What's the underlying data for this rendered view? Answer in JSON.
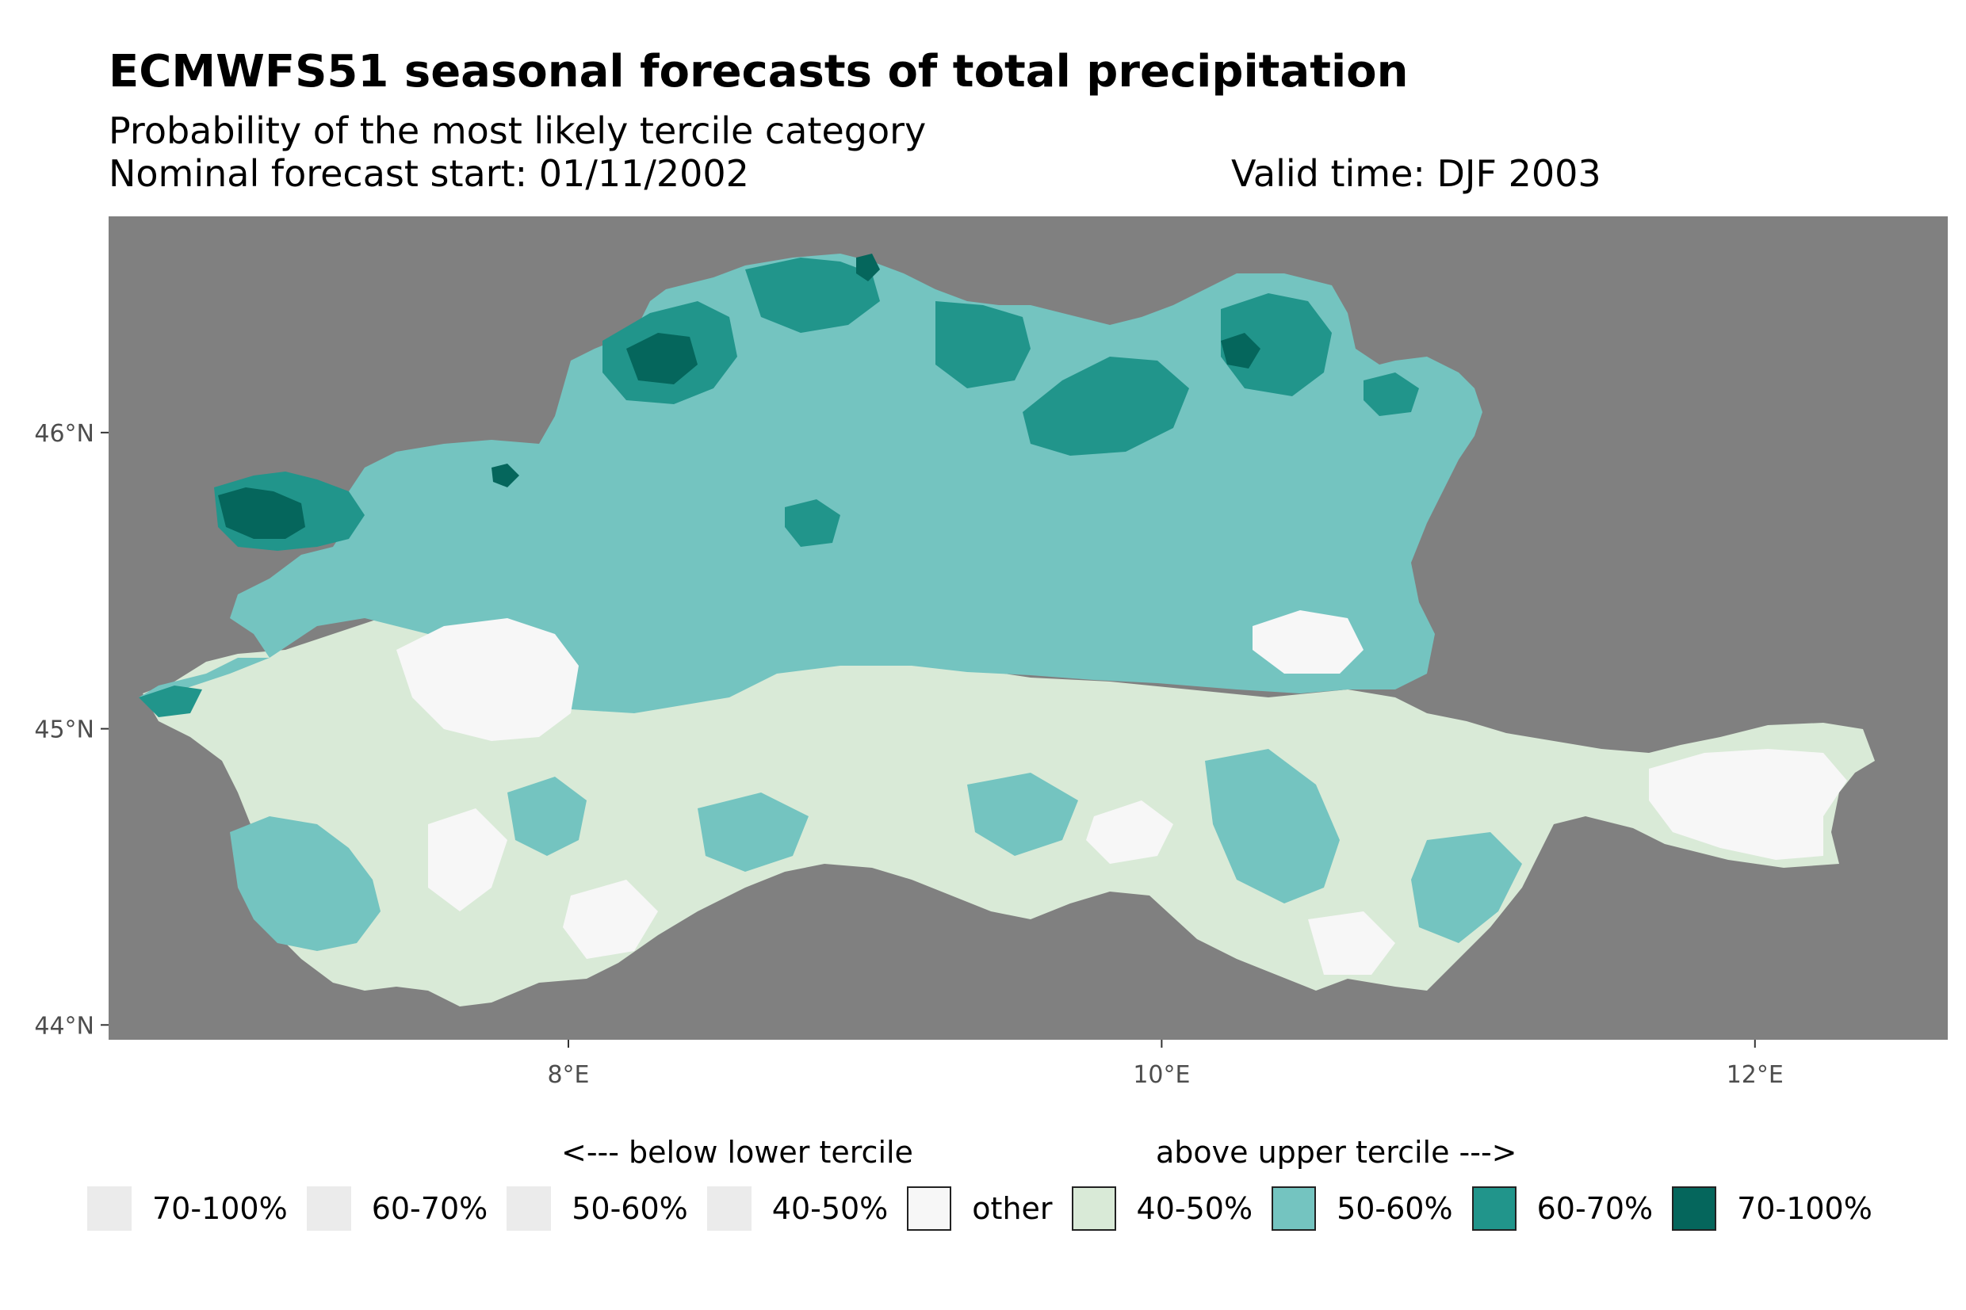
{
  "title": "ECMWFS51 seasonal forecasts of total precipitation",
  "subtitle": "Probability of the most likely tercile category",
  "forecast_start": "Nominal forecast start: 01/11/2002",
  "valid_time": "Valid time: DJF 2003",
  "map": {
    "background": "#808080",
    "x_ticks": [
      {
        "lon": 8,
        "label": "8°E"
      },
      {
        "lon": 10,
        "label": "10°E"
      },
      {
        "lon": 12,
        "label": "12°E"
      }
    ],
    "y_ticks": [
      {
        "lat": 46,
        "label": "46°N"
      },
      {
        "lat": 45,
        "label": "45°N"
      },
      {
        "lat": 44,
        "label": "44°N"
      }
    ],
    "lon_range": [
      6.45,
      12.65
    ],
    "lat_range": [
      43.95,
      46.73
    ]
  },
  "legend": {
    "below_heading": "<--- below lower tercile",
    "above_heading": "above upper tercile --->",
    "items": [
      {
        "label": "70-100%",
        "color": "#ebebeb",
        "bordered": false
      },
      {
        "label": "60-70%",
        "color": "#ebebeb",
        "bordered": false
      },
      {
        "label": "50-60%",
        "color": "#ebebeb",
        "bordered": false
      },
      {
        "label": "40-50%",
        "color": "#ebebeb",
        "bordered": false
      },
      {
        "label": "other",
        "color": "#f7f7f7",
        "bordered": true
      },
      {
        "label": "40-50%",
        "color": "#d9ead7",
        "bordered": true
      },
      {
        "label": "50-60%",
        "color": "#74c4c0",
        "bordered": true
      },
      {
        "label": "60-70%",
        "color": "#21958b",
        "bordered": true
      },
      {
        "label": "70-100%",
        "color": "#05665c",
        "bordered": true
      }
    ]
  },
  "colors": {
    "other": "#f7f7f7",
    "p40_50": "#d9ead7",
    "p50_60": "#74c4c0",
    "p60_70": "#21958b",
    "p70_100": "#05665c"
  }
}
